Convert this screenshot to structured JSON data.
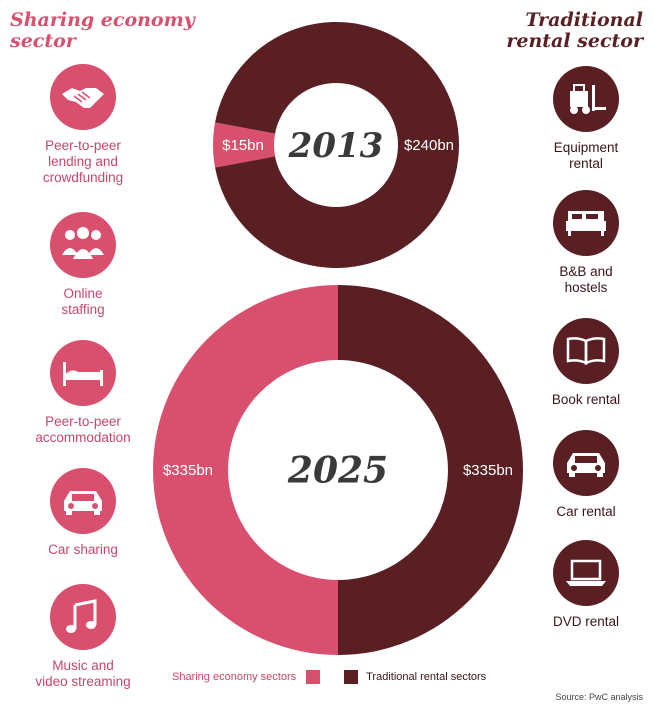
{
  "left_heading": "Sharing economy\nsector",
  "right_heading": "Traditional\nrental sector",
  "colors": {
    "sharing": "#d9506f",
    "traditional": "#5a1f22"
  },
  "left_items": [
    {
      "label": "Peer-to-peer\nlending and\ncrowdfunding",
      "icon": "handshake-icon"
    },
    {
      "label": "Online\nstaffing",
      "icon": "people-icon"
    },
    {
      "label": "Peer-to-peer\naccommodation",
      "icon": "bed-icon"
    },
    {
      "label": "Car sharing",
      "icon": "car-front-icon"
    },
    {
      "label": "Music and\nvideo streaming",
      "icon": "music-note-icon"
    }
  ],
  "right_items": [
    {
      "label": "Equipment\nrental",
      "icon": "forklift-icon"
    },
    {
      "label": "B&B and\nhostels",
      "icon": "bed-icon"
    },
    {
      "label": "Book rental",
      "icon": "open-book-icon"
    },
    {
      "label": "Car rental",
      "icon": "car-front-icon"
    },
    {
      "label": "DVD rental",
      "icon": "laptop-icon"
    }
  ],
  "chart_data": [
    {
      "type": "pie",
      "title": "2013",
      "categories": [
        "Sharing economy sectors",
        "Traditional rental sectors"
      ],
      "values": [
        15,
        240
      ],
      "labels": [
        "$15bn",
        "$240bn"
      ],
      "unit": "$bn"
    },
    {
      "type": "pie",
      "title": "2025",
      "categories": [
        "Sharing economy sectors",
        "Traditional rental sectors"
      ],
      "values": [
        335,
        335
      ],
      "labels": [
        "$335bn",
        "$335bn"
      ],
      "unit": "$bn"
    }
  ],
  "legend": [
    {
      "label": "Sharing economy sectors"
    },
    {
      "label": "Traditional rental sectors"
    }
  ],
  "source": "Source: PwC analysis"
}
